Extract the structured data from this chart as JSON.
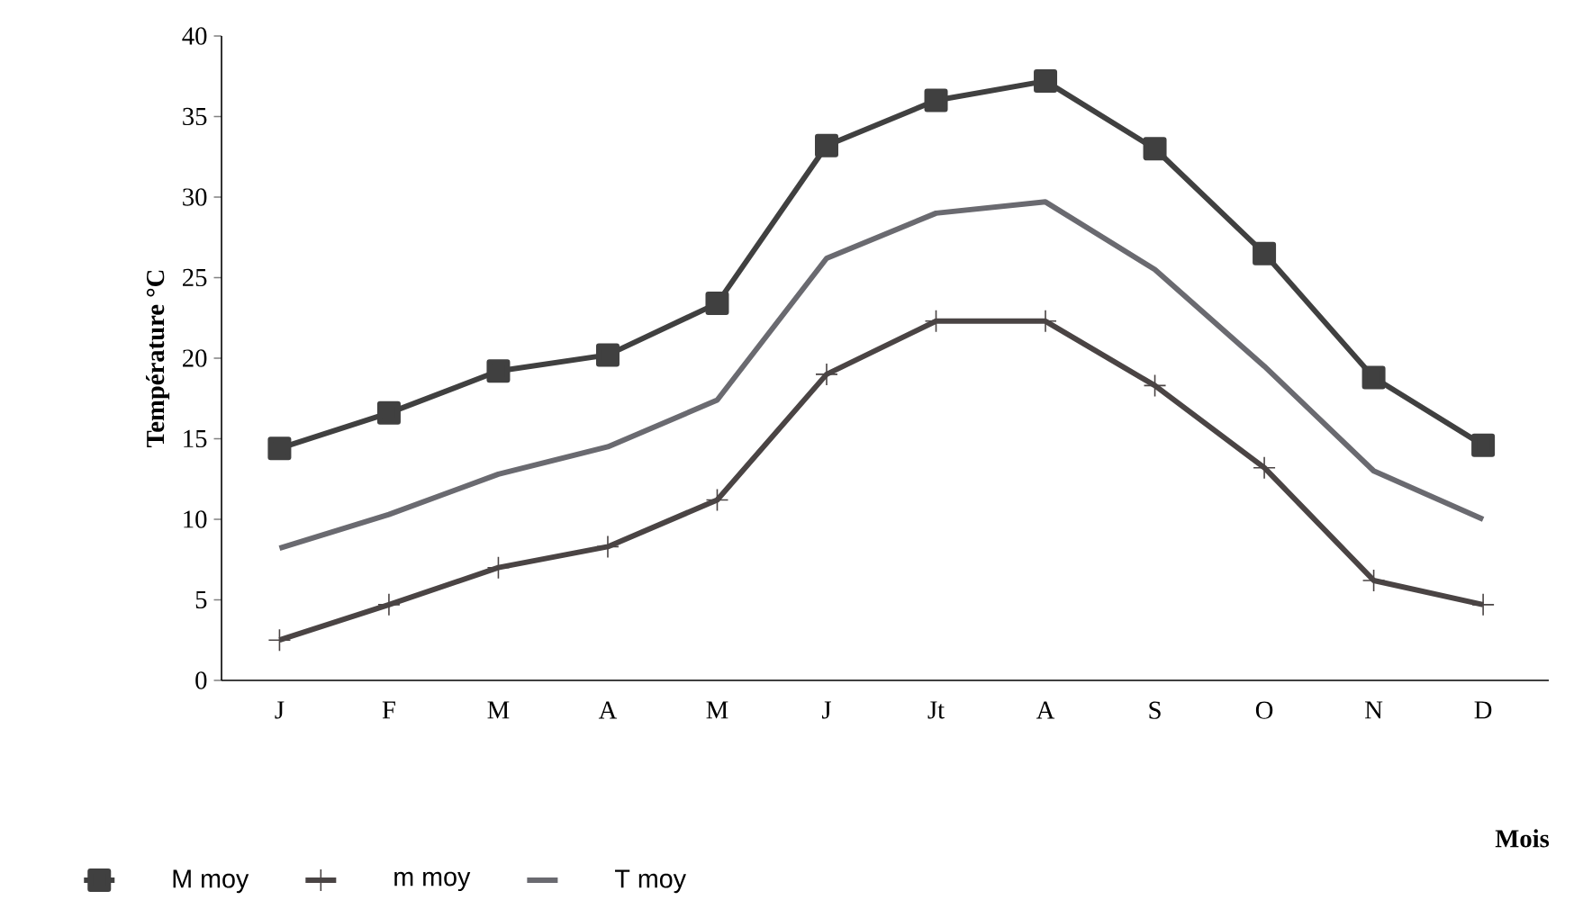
{
  "chart_data": {
    "type": "line",
    "xlabel": "Mois",
    "ylabel": "Température °C",
    "categories": [
      "J",
      "F",
      "M",
      "A",
      "M",
      "J",
      "Jt",
      "A",
      "S",
      "O",
      "N",
      "D"
    ],
    "ylim": [
      0,
      40
    ],
    "yticks": [
      0,
      5,
      10,
      15,
      20,
      25,
      30,
      35,
      40
    ],
    "legend": "bottom",
    "series": [
      {
        "name": "M moy",
        "color": "#404040",
        "marker": "square",
        "values": [
          14.4,
          16.6,
          19.2,
          20.2,
          23.4,
          33.2,
          36,
          37.2,
          33,
          26.5,
          18.8,
          14.6
        ]
      },
      {
        "name": "m moy",
        "color": "#4a4444",
        "marker": "cross",
        "values": [
          2.5,
          4.7,
          7,
          8.3,
          11.2,
          19,
          22.3,
          22.3,
          18.3,
          13.2,
          6.2,
          4.7
        ]
      },
      {
        "name": "T moy",
        "color": "#6a6a70",
        "marker": "none",
        "values": [
          8.2,
          10.3,
          12.8,
          14.5,
          17.4,
          26.2,
          29,
          29.7,
          25.5,
          19.5,
          13,
          10
        ]
      }
    ]
  }
}
